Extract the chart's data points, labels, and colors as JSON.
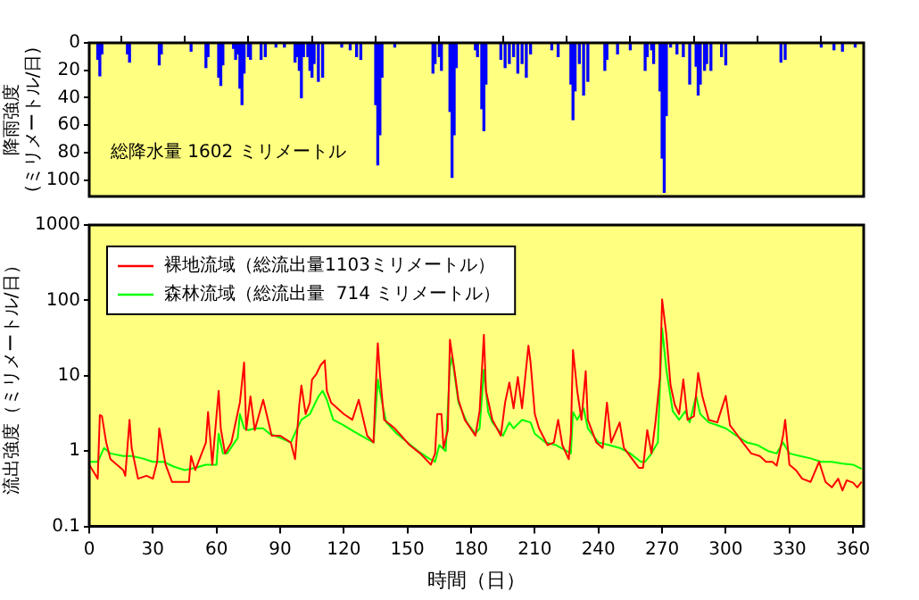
{
  "chart_data": [
    {
      "type": "bar",
      "ylabel": "降雨強度\n(ミリメートル/日)",
      "annotations": [
        "総降水量 1602 ミリメートル"
      ],
      "color": "#0000ff",
      "grid": false,
      "tick_labels": "y",
      "x": [
        4,
        5,
        6,
        18,
        19,
        33,
        34,
        48,
        55,
        56,
        61,
        62,
        63,
        68,
        69,
        70,
        71,
        72,
        73,
        75,
        76,
        81,
        83,
        88,
        92,
        97,
        98,
        99,
        100,
        101,
        103,
        104,
        105,
        106,
        108,
        110,
        119,
        123,
        126,
        128,
        135,
        136,
        137,
        138,
        144,
        162,
        163,
        165,
        166,
        170,
        171,
        172,
        173,
        182,
        183,
        185,
        186,
        187,
        194,
        196,
        198,
        200,
        202,
        204,
        206,
        208,
        218,
        221,
        227,
        228,
        229,
        231,
        233,
        235,
        243,
        244,
        249,
        255,
        262,
        263,
        265,
        266,
        269,
        270,
        271,
        272,
        274,
        277,
        280,
        283,
        286,
        287,
        288,
        290,
        291,
        293,
        298,
        300,
        326,
        328,
        345,
        351,
        355,
        361
      ],
      "values": [
        12,
        24,
        8,
        8,
        14,
        16,
        8,
        6,
        18,
        10,
        25,
        31,
        16,
        4,
        12,
        8,
        33,
        45,
        22,
        10,
        12,
        12,
        10,
        3,
        3,
        14,
        10,
        20,
        40,
        10,
        10,
        20,
        25,
        15,
        28,
        25,
        3,
        5,
        10,
        12,
        45,
        89,
        67,
        25,
        3,
        22,
        15,
        10,
        20,
        50,
        98,
        67,
        18,
        5,
        10,
        48,
        64,
        30,
        12,
        18,
        15,
        10,
        22,
        15,
        25,
        8,
        5,
        10,
        30,
        56,
        35,
        15,
        38,
        28,
        20,
        12,
        8,
        5,
        20,
        10,
        5,
        15,
        35,
        84,
        109,
        53,
        3,
        8,
        10,
        30,
        17,
        38,
        30,
        20,
        15,
        20,
        10,
        16,
        14,
        12,
        3,
        5,
        6,
        3
      ],
      "xlim": [
        0,
        365
      ],
      "xticks": [
        {
          "value": 0,
          "label": null
        },
        {
          "value": 30,
          "label": null
        },
        {
          "value": 60,
          "label": null
        },
        {
          "value": 90,
          "label": null
        },
        {
          "value": 120,
          "label": null
        },
        {
          "value": 150,
          "label": null
        },
        {
          "value": 180,
          "label": null
        },
        {
          "value": 210,
          "label": null
        },
        {
          "value": 240,
          "label": null
        },
        {
          "value": 270,
          "label": null
        },
        {
          "value": 300,
          "label": null
        },
        {
          "value": 330,
          "label": null
        },
        {
          "value": 360,
          "label": null
        }
      ],
      "ylim": [
        112,
        0
      ],
      "yticks": [
        0,
        20,
        40,
        60,
        80,
        100
      ]
    },
    {
      "type": "line",
      "xlabel": "時間（日）",
      "ylabel": "流出強度（ミリメートル/日）",
      "log": "y",
      "grid": false,
      "legend": "top left",
      "marker": "none",
      "xlim": [
        0,
        365
      ],
      "xticks": [
        0,
        30,
        60,
        90,
        120,
        150,
        180,
        210,
        240,
        270,
        300,
        330,
        360
      ],
      "ylim": [
        0.1,
        1000
      ],
      "yticks": [
        0.1,
        1,
        10,
        100,
        1000
      ],
      "series": [
        {
          "name": "裸地流域（総流出量1103ミリメートル）",
          "color": "#ff0000",
          "x": [
            0,
            4,
            5,
            6,
            8,
            10,
            16,
            17,
            19,
            20,
            23,
            27,
            30,
            32,
            33,
            36,
            39,
            47,
            48,
            50,
            55,
            56,
            58,
            61,
            62,
            64,
            67,
            71,
            73,
            74,
            76,
            78,
            82,
            86,
            90,
            95,
            97,
            99,
            100,
            102,
            104,
            105,
            107,
            109,
            111,
            112,
            114,
            120,
            124,
            127,
            131,
            134,
            135,
            136,
            137,
            139,
            144,
            151,
            156,
            161,
            163,
            164,
            166,
            167,
            169,
            170,
            172,
            174,
            177,
            182,
            184,
            186,
            187,
            190,
            194,
            196,
            198,
            200,
            202,
            204,
            207,
            208,
            210,
            212,
            216,
            219,
            221,
            223,
            226,
            227,
            228,
            230,
            232,
            234,
            235,
            239,
            242,
            244,
            246,
            250,
            252,
            256,
            259,
            261,
            263,
            265,
            267,
            269,
            270,
            272,
            274,
            276,
            278,
            280,
            282,
            285,
            287,
            289,
            292,
            296,
            300,
            302,
            305,
            308,
            312,
            316,
            319,
            322,
            324,
            327,
            328,
            330,
            333,
            336,
            340,
            344,
            347,
            350,
            353,
            355,
            357,
            360,
            362,
            364
          ],
          "values": [
            0.66,
            0.43,
            3.0,
            2.9,
            1.3,
            0.78,
            0.56,
            0.47,
            2.6,
            1.1,
            0.43,
            0.47,
            0.43,
            0.72,
            2.0,
            0.66,
            0.39,
            0.39,
            0.86,
            0.56,
            1.3,
            3.3,
            0.66,
            6.3,
            2.0,
            0.93,
            1.3,
            4.4,
            15,
            1.9,
            5.3,
            1.9,
            4.8,
            1.6,
            1.6,
            1.3,
            0.78,
            4.1,
            7.4,
            3.1,
            4.4,
            8.9,
            10.5,
            13.7,
            16,
            6.3,
            4.4,
            3.1,
            2.6,
            4.8,
            1.6,
            1.3,
            6.8,
            27,
            10.5,
            2.6,
            2.0,
            1.2,
            0.93,
            0.66,
            0.93,
            3.1,
            3.1,
            1.1,
            1.9,
            30,
            12.5,
            4.8,
            2.6,
            1.6,
            3.4,
            35,
            6.3,
            2.6,
            1.6,
            4.4,
            8.1,
            3.7,
            9.6,
            3.7,
            25,
            15,
            3.1,
            2.0,
            1.2,
            1.3,
            2.6,
            1.2,
            0.78,
            1.7,
            22,
            6.3,
            2.6,
            11.5,
            2.6,
            1.3,
            1.1,
            4.4,
            1.3,
            2.4,
            1.1,
            0.78,
            0.6,
            0.6,
            1.9,
            0.93,
            2.6,
            9.6,
            103,
            35,
            7.4,
            4.1,
            3.1,
            8.9,
            2.6,
            2.9,
            10.9,
            5.3,
            2.6,
            2.4,
            5.4,
            2.2,
            1.7,
            1.3,
            0.93,
            0.86,
            0.72,
            0.72,
            0.64,
            1.6,
            2.6,
            0.66,
            0.56,
            0.43,
            0.39,
            0.72,
            0.39,
            0.33,
            0.43,
            0.3,
            0.41,
            0.38,
            0.33,
            0.39
          ]
        },
        {
          "name": "森林流域（総流出量  714 ミリメートル）",
          "color": "#00ff00",
          "x": [
            0,
            4,
            7,
            10,
            16,
            20,
            25,
            30,
            35,
            40,
            45,
            50,
            55,
            60,
            61,
            63,
            65,
            70,
            71,
            73,
            75,
            78,
            82,
            85,
            90,
            95,
            98,
            100,
            104,
            108,
            110,
            112,
            115,
            120,
            125,
            130,
            134,
            135,
            136,
            138,
            140,
            145,
            150,
            155,
            160,
            163,
            165,
            168,
            170,
            171,
            174,
            178,
            182,
            184,
            186,
            188,
            190,
            195,
            198,
            200,
            204,
            208,
            210,
            215,
            220,
            225,
            227,
            228,
            230,
            233,
            235,
            240,
            245,
            250,
            255,
            260,
            262,
            265,
            268,
            270,
            272,
            275,
            278,
            281,
            283,
            286,
            288,
            292,
            296,
            300,
            305,
            310,
            315,
            320,
            324,
            327,
            330,
            335,
            340,
            345,
            350,
            355,
            360,
            364
          ],
          "values": [
            0.72,
            0.72,
            1.1,
            0.93,
            0.86,
            0.86,
            0.8,
            0.72,
            0.72,
            0.62,
            0.56,
            0.6,
            0.66,
            0.66,
            1.7,
            0.93,
            0.93,
            1.5,
            3.1,
            2.0,
            1.9,
            2.0,
            2.0,
            1.7,
            1.5,
            1.3,
            2.0,
            2.6,
            3.1,
            5.3,
            6.3,
            4.8,
            2.6,
            2.2,
            1.8,
            1.5,
            1.3,
            3.3,
            8.9,
            4.4,
            2.4,
            1.7,
            1.3,
            1.0,
            0.8,
            0.72,
            1.2,
            1.0,
            13,
            18,
            4.4,
            2.4,
            1.7,
            2.0,
            12,
            3.3,
            2.4,
            1.6,
            2.4,
            2.0,
            2.6,
            2.4,
            1.7,
            1.3,
            1.2,
            1.0,
            0.93,
            3.3,
            2.6,
            3.7,
            2.0,
            1.3,
            1.2,
            1.1,
            0.93,
            0.72,
            0.72,
            0.93,
            1.3,
            43,
            12,
            3.4,
            2.6,
            3.4,
            2.4,
            5.4,
            3.1,
            2.4,
            2.2,
            2.0,
            1.6,
            1.3,
            1.2,
            1.0,
            0.93,
            1.3,
            0.93,
            0.86,
            0.8,
            0.72,
            0.72,
            0.68,
            0.66,
            0.58
          ]
        }
      ]
    }
  ]
}
